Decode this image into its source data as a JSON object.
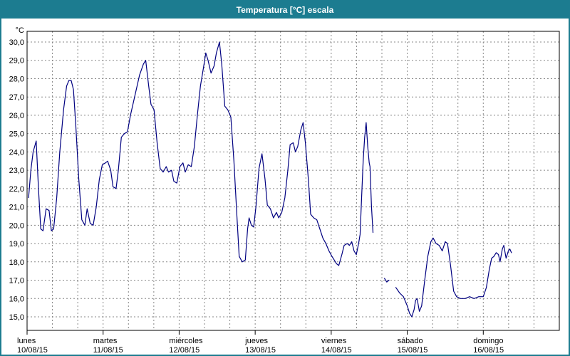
{
  "window": {
    "title": "Temperatura [°C] escala"
  },
  "colors": {
    "titlebar_bg": "#1c7c90",
    "titlebar_text": "#ffffff",
    "frame_border": "#1c7c90",
    "plot_border": "#000000",
    "grid": "#888888",
    "line": "#000080",
    "background": "#ffffff",
    "text": "#000000"
  },
  "chart_data": {
    "type": "line",
    "title": "Temperatura [°C] escala",
    "y_unit_label": "°C",
    "ylabel": "Temperatura [°C]",
    "xlabel": "",
    "ylim": [
      15,
      30
    ],
    "x_range_days": [
      0,
      7
    ],
    "grid": {
      "horizontal": true,
      "vertical": true,
      "style": "dashed",
      "v_lines_per_day": 3
    },
    "legend": "none",
    "yticks": [
      {
        "value": 30,
        "label": "30,0"
      },
      {
        "value": 29,
        "label": "29,0"
      },
      {
        "value": 28,
        "label": "28,0"
      },
      {
        "value": 27,
        "label": "27,0"
      },
      {
        "value": 26,
        "label": "26,0"
      },
      {
        "value": 25,
        "label": "25,0"
      },
      {
        "value": 24,
        "label": "24,0"
      },
      {
        "value": 23,
        "label": "23,0"
      },
      {
        "value": 22,
        "label": "22,0"
      },
      {
        "value": 21,
        "label": "21,0"
      },
      {
        "value": 20,
        "label": "20,0"
      },
      {
        "value": 19,
        "label": "19,0"
      },
      {
        "value": 18,
        "label": "18,0"
      },
      {
        "value": 17,
        "label": "17,0"
      },
      {
        "value": 16,
        "label": "16,0"
      },
      {
        "value": 15,
        "label": "15,0"
      }
    ],
    "days": [
      {
        "name": "lunes",
        "date": "10/08/15"
      },
      {
        "name": "martes",
        "date": "11/08/15"
      },
      {
        "name": "miércoles",
        "date": "12/08/15"
      },
      {
        "name": "jueves",
        "date": "13/08/15"
      },
      {
        "name": "viernes",
        "date": "14/08/15"
      },
      {
        "name": "sábado",
        "date": "15/08/15"
      },
      {
        "name": "domingo",
        "date": "16/08/15"
      }
    ],
    "series": [
      {
        "name": "Temperatura",
        "color": "#000080",
        "segments": [
          [
            [
              0.02,
              21.5
            ],
            [
              0.05,
              23.0
            ],
            [
              0.08,
              24.0
            ],
            [
              0.12,
              24.6
            ],
            [
              0.15,
              22.0
            ],
            [
              0.18,
              19.8
            ],
            [
              0.21,
              19.7
            ],
            [
              0.25,
              20.9
            ],
            [
              0.29,
              20.8
            ],
            [
              0.32,
              19.7
            ],
            [
              0.35,
              19.8
            ],
            [
              0.39,
              21.5
            ],
            [
              0.43,
              24.0
            ],
            [
              0.48,
              26.3
            ],
            [
              0.52,
              27.6
            ],
            [
              0.55,
              27.9
            ],
            [
              0.58,
              27.9
            ],
            [
              0.61,
              27.4
            ],
            [
              0.64,
              25.5
            ],
            [
              0.68,
              22.5
            ],
            [
              0.72,
              20.3
            ],
            [
              0.76,
              20.0
            ],
            [
              0.79,
              20.9
            ],
            [
              0.83,
              20.1
            ],
            [
              0.87,
              20.0
            ],
            [
              0.91,
              21.0
            ],
            [
              0.95,
              22.5
            ],
            [
              0.99,
              23.3
            ],
            [
              1.03,
              23.4
            ],
            [
              1.06,
              23.5
            ],
            [
              1.1,
              23.0
            ],
            [
              1.13,
              22.1
            ],
            [
              1.17,
              22.0
            ],
            [
              1.2,
              23.0
            ],
            [
              1.24,
              24.8
            ],
            [
              1.28,
              25.0
            ],
            [
              1.32,
              25.1
            ],
            [
              1.36,
              26.0
            ],
            [
              1.42,
              27.1
            ],
            [
              1.48,
              28.2
            ],
            [
              1.53,
              28.8
            ],
            [
              1.56,
              29.0
            ],
            [
              1.6,
              27.6
            ],
            [
              1.63,
              26.6
            ],
            [
              1.67,
              26.3
            ],
            [
              1.71,
              24.5
            ],
            [
              1.75,
              23.1
            ],
            [
              1.79,
              22.9
            ],
            [
              1.83,
              23.2
            ],
            [
              1.86,
              22.9
            ],
            [
              1.9,
              23.0
            ],
            [
              1.93,
              22.4
            ],
            [
              1.97,
              22.3
            ],
            [
              2.01,
              23.2
            ],
            [
              2.05,
              23.4
            ],
            [
              2.08,
              22.9
            ],
            [
              2.12,
              23.3
            ],
            [
              2.16,
              23.2
            ],
            [
              2.2,
              24.3
            ],
            [
              2.24,
              26.0
            ],
            [
              2.28,
              27.6
            ],
            [
              2.32,
              28.6
            ],
            [
              2.35,
              29.4
            ],
            [
              2.38,
              29.0
            ],
            [
              2.42,
              28.3
            ],
            [
              2.46,
              28.7
            ],
            [
              2.49,
              29.4
            ],
            [
              2.53,
              30.0
            ],
            [
              2.56,
              28.8
            ],
            [
              2.6,
              26.5
            ],
            [
              2.64,
              26.3
            ],
            [
              2.68,
              25.9
            ],
            [
              2.72,
              23.5
            ],
            [
              2.76,
              20.5
            ],
            [
              2.79,
              18.3
            ],
            [
              2.83,
              18.0
            ],
            [
              2.87,
              18.1
            ],
            [
              2.9,
              19.8
            ],
            [
              2.92,
              20.4
            ],
            [
              2.95,
              20.0
            ],
            [
              2.98,
              19.9
            ],
            [
              3.01,
              21.0
            ],
            [
              3.05,
              23.1
            ],
            [
              3.09,
              23.9
            ],
            [
              3.13,
              22.5
            ],
            [
              3.16,
              21.1
            ],
            [
              3.2,
              20.9
            ],
            [
              3.24,
              20.4
            ],
            [
              3.28,
              20.7
            ],
            [
              3.31,
              20.4
            ],
            [
              3.35,
              20.7
            ],
            [
              3.39,
              21.5
            ],
            [
              3.43,
              23.0
            ],
            [
              3.46,
              24.4
            ],
            [
              3.5,
              24.5
            ],
            [
              3.53,
              24.0
            ],
            [
              3.56,
              24.3
            ],
            [
              3.6,
              25.2
            ],
            [
              3.63,
              25.6
            ],
            [
              3.66,
              24.5
            ],
            [
              3.7,
              22.5
            ],
            [
              3.73,
              20.6
            ],
            [
              3.77,
              20.4
            ],
            [
              3.81,
              20.3
            ],
            [
              3.85,
              19.8
            ],
            [
              3.89,
              19.3
            ],
            [
              3.93,
              19.0
            ],
            [
              3.97,
              18.6
            ],
            [
              4.01,
              18.3
            ],
            [
              4.04,
              18.1
            ],
            [
              4.07,
              17.9
            ],
            [
              4.1,
              17.8
            ],
            [
              4.14,
              18.4
            ],
            [
              4.17,
              18.9
            ],
            [
              4.21,
              19.0
            ],
            [
              4.24,
              18.9
            ],
            [
              4.27,
              19.1
            ],
            [
              4.3,
              18.6
            ],
            [
              4.33,
              18.4
            ],
            [
              4.36,
              19.0
            ],
            [
              4.38,
              19.5
            ],
            [
              4.4,
              21.5
            ],
            [
              4.42,
              23.5
            ],
            [
              4.44,
              24.8
            ],
            [
              4.46,
              25.6
            ],
            [
              4.48,
              24.3
            ],
            [
              4.5,
              23.4
            ],
            [
              4.51,
              23.2
            ],
            [
              4.53,
              21.0
            ],
            [
              4.55,
              19.6
            ]
          ],
          [
            [
              4.7,
              17.1
            ],
            [
              4.73,
              16.9
            ],
            [
              4.76,
              17.0
            ]
          ],
          [
            [
              4.85,
              16.6
            ],
            [
              4.9,
              16.3
            ],
            [
              4.95,
              16.1
            ],
            [
              5.0,
              15.6
            ],
            [
              5.03,
              15.2
            ],
            [
              5.06,
              15.0
            ],
            [
              5.09,
              15.4
            ],
            [
              5.11,
              15.9
            ],
            [
              5.13,
              16.0
            ],
            [
              5.16,
              15.3
            ],
            [
              5.19,
              15.6
            ],
            [
              5.23,
              17.0
            ],
            [
              5.27,
              18.3
            ],
            [
              5.31,
              19.1
            ],
            [
              5.34,
              19.3
            ],
            [
              5.38,
              19.0
            ],
            [
              5.42,
              18.9
            ],
            [
              5.46,
              18.6
            ],
            [
              5.5,
              19.1
            ],
            [
              5.53,
              19.0
            ],
            [
              5.57,
              17.8
            ],
            [
              5.61,
              16.4
            ],
            [
              5.65,
              16.1
            ],
            [
              5.7,
              16.0
            ],
            [
              5.76,
              16.0
            ],
            [
              5.82,
              16.1
            ],
            [
              5.88,
              16.0
            ],
            [
              5.94,
              16.1
            ],
            [
              6.0,
              16.1
            ],
            [
              6.04,
              16.6
            ],
            [
              6.08,
              17.6
            ],
            [
              6.11,
              18.2
            ],
            [
              6.14,
              18.3
            ],
            [
              6.17,
              18.5
            ],
            [
              6.2,
              18.4
            ],
            [
              6.22,
              18.0
            ],
            [
              6.25,
              18.7
            ],
            [
              6.27,
              18.9
            ],
            [
              6.3,
              18.2
            ],
            [
              6.33,
              18.6
            ],
            [
              6.35,
              18.7
            ],
            [
              6.37,
              18.5
            ]
          ]
        ]
      }
    ]
  }
}
